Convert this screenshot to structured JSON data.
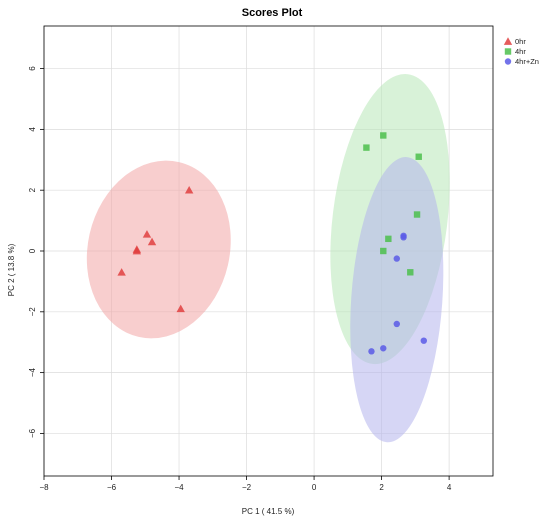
{
  "chart_data": {
    "type": "scatter",
    "title": "Scores Plot",
    "xlabel": "PC 1 ( 41.5 %)",
    "ylabel": "PC 2 ( 13.8 %)",
    "xlim": [
      -8,
      5.3
    ],
    "ylim": [
      -7.4,
      7.4
    ],
    "xticks": [
      -8,
      -6,
      -4,
      -2,
      0,
      2,
      4
    ],
    "yticks": [
      -6,
      -4,
      -2,
      0,
      2,
      4,
      6
    ],
    "grid": true,
    "legend_position": "top-right",
    "series": [
      {
        "name": "0hr",
        "marker": "triangle",
        "color": "#e0403f",
        "fill": "#f2a6a6",
        "points": [
          [
            -3.7,
            2.0
          ],
          [
            -4.95,
            0.55
          ],
          [
            -4.8,
            0.3
          ],
          [
            -5.25,
            0.05
          ],
          [
            -5.25,
            0.0
          ],
          [
            -5.7,
            -0.7
          ],
          [
            -3.95,
            -1.9
          ]
        ],
        "ellipse": {
          "cx": -4.6,
          "cy": 0.05,
          "rx": 2.1,
          "ry": 2.95,
          "angle_deg": 13
        }
      },
      {
        "name": "4hr",
        "marker": "square",
        "color": "#4cbf4c",
        "fill": "#b8e8b8",
        "points": [
          [
            2.05,
            3.8
          ],
          [
            1.55,
            3.4
          ],
          [
            3.1,
            3.1
          ],
          [
            3.05,
            1.2
          ],
          [
            2.2,
            0.4
          ],
          [
            2.05,
            0.0
          ],
          [
            2.85,
            -0.7
          ]
        ],
        "ellipse": {
          "cx": 2.25,
          "cy": 1.05,
          "rx": 1.7,
          "ry": 4.8,
          "angle_deg": 7
        }
      },
      {
        "name": "4hr+Zn",
        "marker": "circle",
        "color": "#5a5ae6",
        "fill": "#b4b4ec",
        "points": [
          [
            2.65,
            0.5
          ],
          [
            2.65,
            0.45
          ],
          [
            2.45,
            -0.25
          ],
          [
            2.45,
            -2.4
          ],
          [
            3.25,
            -2.95
          ],
          [
            2.05,
            -3.2
          ],
          [
            1.7,
            -3.3
          ]
        ],
        "ellipse": {
          "cx": 2.45,
          "cy": -1.6,
          "rx": 1.35,
          "ry": 4.7,
          "angle_deg": 4
        }
      }
    ]
  }
}
